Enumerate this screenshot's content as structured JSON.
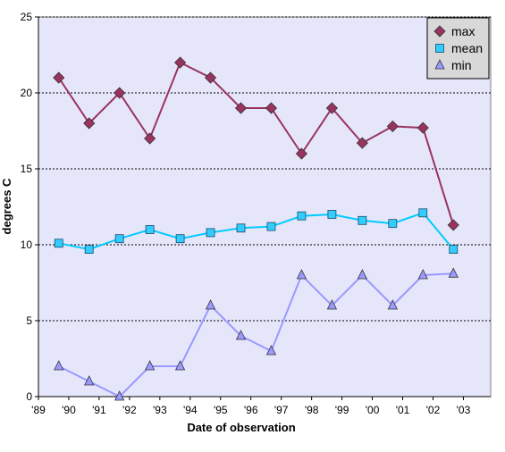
{
  "chart_data": {
    "type": "line",
    "title": "",
    "xlabel": "Date of observation",
    "ylabel": "degrees C",
    "xlim": [
      1989,
      2003.9
    ],
    "ylim": [
      0,
      25
    ],
    "y_ticks": [
      0,
      5,
      10,
      15,
      20,
      25
    ],
    "x_ticks": [
      1989,
      1990,
      1991,
      1992,
      1993,
      1994,
      1995,
      1996,
      1997,
      1998,
      1999,
      2000,
      2001,
      2002,
      2003
    ],
    "x_tick_labels": [
      "'89",
      "'90",
      "'91",
      "'92",
      "'93",
      "'94",
      "'95",
      "'96",
      "'97",
      "'98",
      "'99",
      "'00",
      "'01",
      "'02",
      "'03"
    ],
    "grid": "horizontal dotted",
    "plot_background": "#e6e6fa",
    "legend_position": "top-right",
    "x": [
      1989.67,
      1990.67,
      1991.67,
      1992.67,
      1993.67,
      1994.67,
      1995.67,
      1996.67,
      1997.67,
      1998.67,
      1999.67,
      2000.67,
      2001.67,
      2002.67
    ],
    "series": [
      {
        "name": "max",
        "color": "#99335f",
        "marker": "diamond",
        "marker_color": "#99335f",
        "values": [
          21,
          18,
          20,
          17,
          22,
          21,
          19,
          19,
          16,
          19,
          16.7,
          17.8,
          17.7,
          11.3
        ]
      },
      {
        "name": "mean",
        "color": "#00ccff",
        "marker": "square",
        "marker_color": "#33ccff",
        "values": [
          10.1,
          9.7,
          10.4,
          11.0,
          10.4,
          10.8,
          11.1,
          11.2,
          11.9,
          12.0,
          11.6,
          11.4,
          12.1,
          9.7
        ]
      },
      {
        "name": "min",
        "color": "#9999ff",
        "marker": "triangle",
        "marker_color": "#9999ff",
        "values": [
          2,
          1,
          0,
          2,
          2,
          6,
          4,
          3,
          8,
          6,
          8,
          6,
          8,
          8.1
        ]
      }
    ]
  }
}
